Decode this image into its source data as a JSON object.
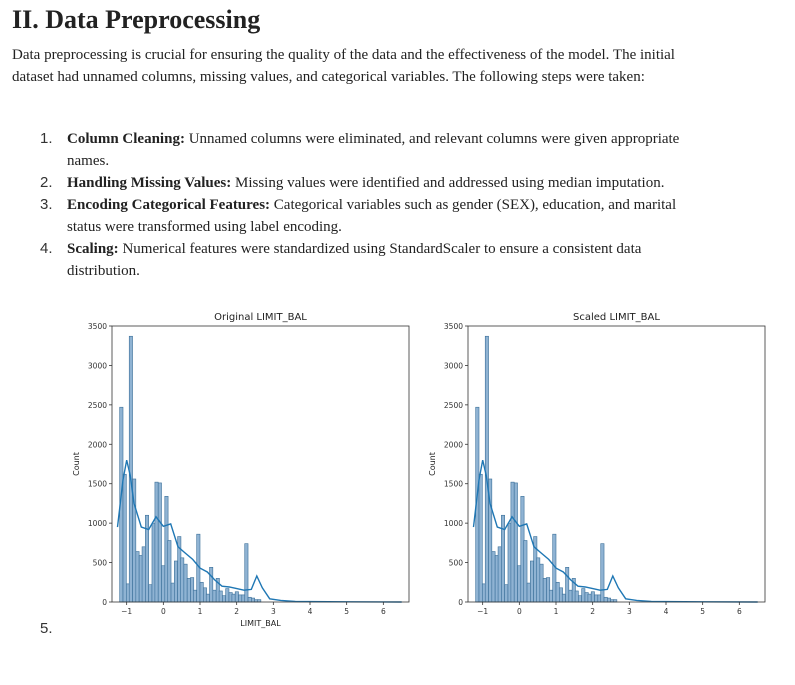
{
  "heading": "II. Data Preprocessing",
  "intro": "Data preprocessing is crucial for ensuring the quality of the data and the effectiveness of the model. The initial dataset had unnamed columns, missing values, and categorical variables. The following steps were taken:",
  "steps": [
    {
      "number": "1.",
      "title": "Column Cleaning:",
      "text": " Unnamed columns were eliminated, and relevant columns were given appropriate names."
    },
    {
      "number": "2.",
      "title": "Handling Missing Values:",
      "text": " Missing values were identified and addressed using median imputation."
    },
    {
      "number": "3.",
      "title": "Encoding Categorical Features:",
      "text": " Categorical variables such as gender (SEX), education, and marital status were transformed using label encoding."
    },
    {
      "number": "4.",
      "title": "Scaling:",
      "text": " Numerical features were standardized using StandardScaler to ensure a consistent data distribution."
    }
  ],
  "next_item_number": "5.",
  "colors": {
    "bar_fill": "#8fb3d3",
    "bar_edge": "#3a6f99",
    "kde": "#1f77b4"
  },
  "chart_data": [
    {
      "type": "bar",
      "title": "Original LIMIT_BAL",
      "xlabel": "LIMIT_BAL",
      "ylabel": "Count",
      "xlim": [
        -1.4,
        6.7
      ],
      "ylim": [
        0,
        3500
      ],
      "xticks": [
        "-1",
        "0",
        "1",
        "2",
        "3",
        "4",
        "5",
        "6"
      ],
      "yticks": [
        "0",
        "500",
        "1000",
        "1500",
        "2000",
        "2500",
        "3000",
        "3500"
      ],
      "bins_x": [
        -1.19,
        -1.1,
        -1.01,
        -0.93,
        -0.84,
        -0.75,
        -0.66,
        -0.58,
        -0.49,
        -0.4,
        -0.31,
        -0.23,
        -0.14,
        -0.05,
        0.04,
        0.12,
        0.21,
        0.3,
        0.39,
        0.47,
        0.56,
        0.65,
        0.74,
        0.82,
        0.91,
        1.0,
        1.09,
        1.17,
        1.26,
        1.35,
        1.44,
        1.52,
        1.61,
        1.7,
        1.79,
        1.87,
        1.96,
        2.05,
        2.14,
        2.22,
        2.31,
        2.4,
        2.49,
        2.57
      ],
      "counts": [
        2470,
        1620,
        230,
        3370,
        1560,
        640,
        590,
        700,
        1100,
        220,
        1000,
        1520,
        1510,
        460,
        1340,
        780,
        240,
        520,
        830,
        560,
        480,
        300,
        310,
        150,
        860,
        250,
        180,
        100,
        440,
        150,
        300,
        140,
        80,
        170,
        120,
        100,
        130,
        90,
        90,
        740,
        60,
        50,
        30,
        30
      ],
      "kde_x": [
        -1.25,
        -1.1,
        -1.0,
        -0.9,
        -0.8,
        -0.6,
        -0.4,
        -0.2,
        0.0,
        0.2,
        0.4,
        0.6,
        0.8,
        1.0,
        1.2,
        1.4,
        1.6,
        1.8,
        2.0,
        2.2,
        2.4,
        2.55,
        2.7,
        2.9,
        3.2,
        3.6,
        4.0,
        5.0,
        6.5
      ],
      "kde_y": [
        950,
        1550,
        1800,
        1600,
        1250,
        950,
        920,
        1080,
        960,
        990,
        700,
        620,
        540,
        430,
        380,
        280,
        200,
        190,
        170,
        150,
        160,
        330,
        180,
        40,
        20,
        8,
        5,
        2,
        0
      ]
    },
    {
      "type": "bar",
      "title": "Scaled LIMIT_BAL",
      "xlabel": "",
      "ylabel": "Count",
      "xlim": [
        -1.4,
        6.7
      ],
      "ylim": [
        0,
        3500
      ],
      "xticks": [
        "-1",
        "0",
        "1",
        "2",
        "3",
        "4",
        "5",
        "6"
      ],
      "yticks": [
        "0",
        "500",
        "1000",
        "1500",
        "2000",
        "2500",
        "3000",
        "3500"
      ],
      "bins_x": [
        -1.19,
        -1.1,
        -1.01,
        -0.93,
        -0.84,
        -0.75,
        -0.66,
        -0.58,
        -0.49,
        -0.4,
        -0.31,
        -0.23,
        -0.14,
        -0.05,
        0.04,
        0.12,
        0.21,
        0.3,
        0.39,
        0.47,
        0.56,
        0.65,
        0.74,
        0.82,
        0.91,
        1.0,
        1.09,
        1.17,
        1.26,
        1.35,
        1.44,
        1.52,
        1.61,
        1.7,
        1.79,
        1.87,
        1.96,
        2.05,
        2.14,
        2.22,
        2.31,
        2.4,
        2.49,
        2.57
      ],
      "counts": [
        2470,
        1620,
        230,
        3370,
        1560,
        640,
        590,
        700,
        1100,
        220,
        1000,
        1520,
        1510,
        460,
        1340,
        780,
        240,
        520,
        830,
        560,
        480,
        300,
        310,
        150,
        860,
        250,
        180,
        100,
        440,
        150,
        300,
        140,
        80,
        170,
        120,
        100,
        130,
        90,
        90,
        740,
        60,
        50,
        30,
        30
      ],
      "kde_x": [
        -1.25,
        -1.1,
        -1.0,
        -0.9,
        -0.8,
        -0.6,
        -0.4,
        -0.2,
        0.0,
        0.2,
        0.4,
        0.6,
        0.8,
        1.0,
        1.2,
        1.4,
        1.6,
        1.8,
        2.0,
        2.2,
        2.4,
        2.55,
        2.7,
        2.9,
        3.2,
        3.6,
        4.0,
        5.0,
        6.5
      ],
      "kde_y": [
        950,
        1550,
        1800,
        1600,
        1250,
        950,
        920,
        1080,
        960,
        990,
        700,
        620,
        540,
        430,
        380,
        280,
        200,
        190,
        170,
        150,
        160,
        330,
        180,
        40,
        20,
        8,
        5,
        2,
        0
      ]
    }
  ]
}
